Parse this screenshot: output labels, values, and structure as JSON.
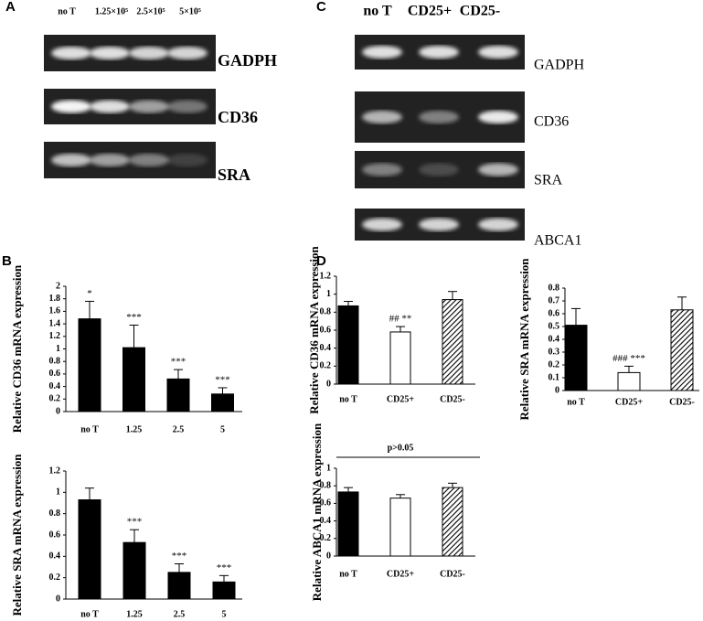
{
  "panel_labels": [
    "A",
    "B",
    "C",
    "D"
  ],
  "gel_a": {
    "lanes": [
      "no T",
      "1.25×10⁵",
      "2.5×10⁵",
      "5×10⁵"
    ],
    "genes": [
      "GADPH",
      "CD36",
      "SRA"
    ]
  },
  "gel_c": {
    "lanes": [
      "no T",
      "CD25+",
      "CD25-"
    ],
    "genes": [
      "GADPH",
      "CD36",
      "SRA",
      "ABCA1"
    ]
  },
  "chart_data": [
    {
      "type": "bar",
      "ylabel": "Relative CD36 mRNA expression",
      "categories": [
        "no T",
        "1.25",
        "2.5",
        "5"
      ],
      "values": [
        1.48,
        1.02,
        0.52,
        0.28
      ],
      "errors": [
        0.28,
        0.36,
        0.15,
        0.1
      ],
      "annotations": [
        "*",
        "***",
        "***",
        "***"
      ],
      "colors": [
        "#000000",
        "#000000",
        "#000000",
        "#000000"
      ],
      "hatched": [
        false,
        false,
        false,
        false
      ],
      "ylim": [
        0,
        2
      ],
      "yticks": [
        0,
        0.2,
        0.4,
        0.6,
        0.8,
        1,
        1.2,
        1.4,
        1.6,
        1.8,
        2
      ]
    },
    {
      "type": "bar",
      "ylabel": "Relative SRA mRNA expression",
      "categories": [
        "no T",
        "1.25",
        "2.5",
        "5"
      ],
      "values": [
        0.93,
        0.53,
        0.25,
        0.16
      ],
      "errors": [
        0.11,
        0.12,
        0.08,
        0.06
      ],
      "annotations": [
        null,
        "***",
        "***",
        "***"
      ],
      "colors": [
        "#000000",
        "#000000",
        "#000000",
        "#000000"
      ],
      "hatched": [
        false,
        false,
        false,
        false
      ],
      "ylim": [
        0,
        1.2
      ],
      "yticks": [
        0,
        0.2,
        0.4,
        0.6,
        0.8,
        1,
        1.2
      ]
    },
    {
      "type": "bar",
      "ylabel": "Relative CD36 mRNA expression",
      "categories": [
        "no T",
        "CD25+",
        "CD25-"
      ],
      "values": [
        0.87,
        0.58,
        0.94
      ],
      "errors": [
        0.05,
        0.06,
        0.09
      ],
      "annotations": [
        null,
        "## **",
        null
      ],
      "colors": [
        "#000000",
        "#ffffff",
        "#000000"
      ],
      "hatched": [
        false,
        false,
        true
      ],
      "ylim": [
        0,
        1.2
      ],
      "yticks": [
        0,
        0.2,
        0.4,
        0.6,
        0.8,
        1,
        1.2
      ]
    },
    {
      "type": "bar",
      "ylabel": "Relative SRA mRNA expression",
      "categories": [
        "no T",
        "CD25+",
        "CD25-"
      ],
      "values": [
        0.51,
        0.14,
        0.63
      ],
      "errors": [
        0.13,
        0.05,
        0.1
      ],
      "annotations": [
        null,
        "### ***",
        null
      ],
      "colors": [
        "#000000",
        "#ffffff",
        "#000000"
      ],
      "hatched": [
        false,
        false,
        true
      ],
      "ylim": [
        0,
        0.8
      ],
      "yticks": [
        0,
        0.1,
        0.2,
        0.3,
        0.4,
        0.5,
        0.6,
        0.7,
        0.8
      ]
    },
    {
      "type": "bar",
      "ylabel": "Relative ABCA1 mRNA expression",
      "categories": [
        "no T",
        "CD25+",
        "CD25-"
      ],
      "values": [
        0.73,
        0.66,
        0.78
      ],
      "errors": [
        0.05,
        0.04,
        0.05
      ],
      "note": "p>0.05",
      "colors": [
        "#000000",
        "#ffffff",
        "#000000"
      ],
      "hatched": [
        false,
        false,
        true
      ],
      "ylim": [
        0,
        1
      ],
      "yticks": [
        0,
        0.2,
        0.4,
        0.6,
        0.8,
        1
      ]
    }
  ]
}
